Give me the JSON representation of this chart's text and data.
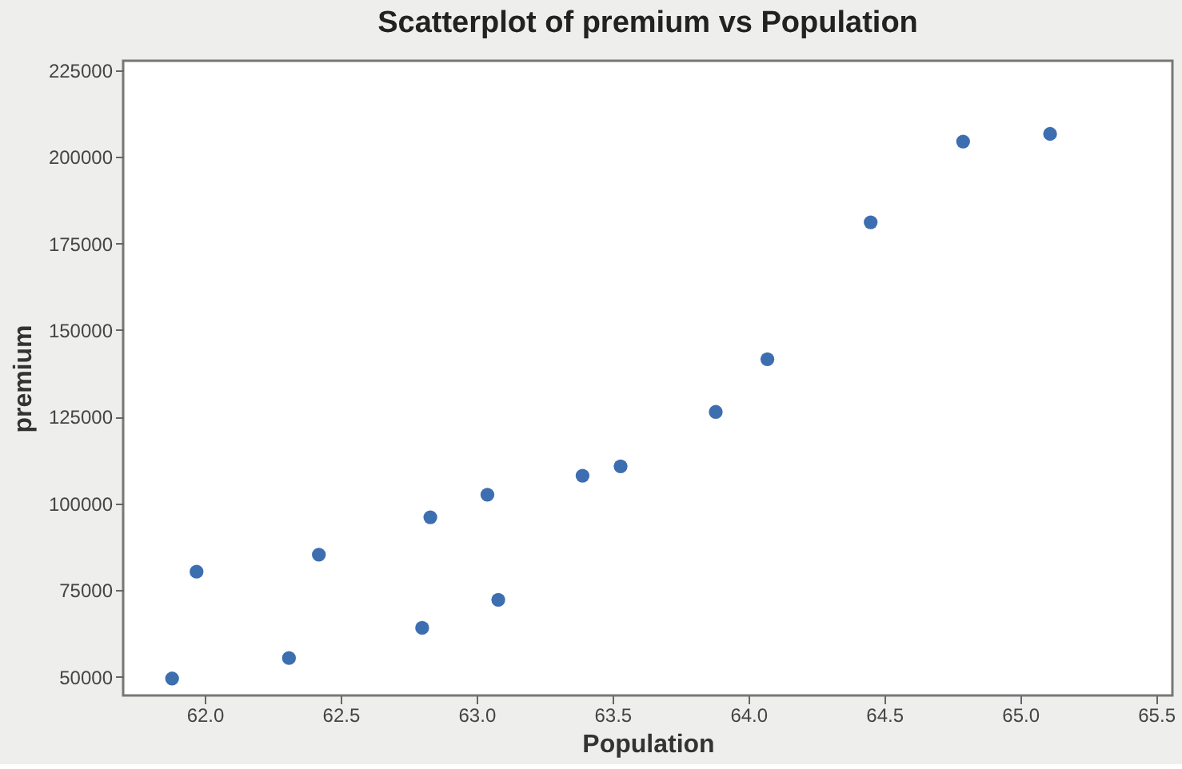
{
  "chart_data": {
    "type": "scatter",
    "title": "Scatterplot of premium vs Population",
    "xlabel": "Population",
    "ylabel": "premium",
    "x": [
      61.88,
      61.97,
      62.31,
      62.42,
      62.8,
      62.83,
      63.04,
      63.08,
      63.39,
      63.53,
      63.88,
      64.07,
      64.45,
      64.79,
      65.11
    ],
    "series": [
      {
        "color": "#3d6eb0",
        "values": [
          49500,
          80300,
          55400,
          85200,
          64100,
          96000,
          102500,
          72200,
          108000,
          110700,
          126400,
          141600,
          181100,
          204400,
          206600
        ]
      }
    ],
    "xlim": [
      61.7,
      65.56
    ],
    "ylim": [
      44600,
      227700
    ],
    "xticks": [
      {
        "value": 62,
        "label": "62.0"
      },
      62.5,
      {
        "value": 63,
        "label": "63.0"
      },
      63.5,
      {
        "value": 64,
        "label": "64.0"
      },
      64.5,
      {
        "value": 65,
        "label": "65.0"
      },
      65.5
    ],
    "yticks": [
      50000,
      75000,
      100000,
      125000,
      150000,
      175000,
      200000,
      225000
    ],
    "grid": false,
    "marker": "circle"
  }
}
